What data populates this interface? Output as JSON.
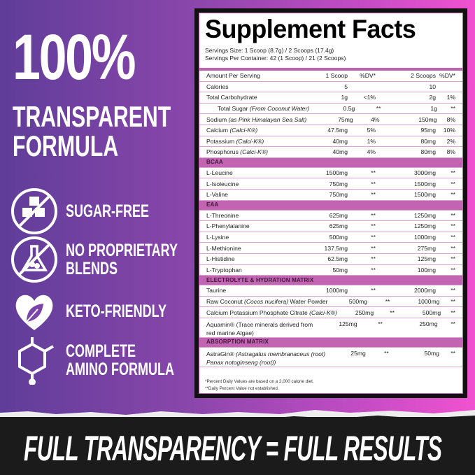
{
  "hero": {
    "line1": "100%",
    "line2": "TRANSPARENT",
    "line3": "FORMULA"
  },
  "features": [
    {
      "icon": "no-sugar-cubes-icon",
      "lines": [
        "SUGAR-FREE"
      ]
    },
    {
      "icon": "no-flask-icon",
      "lines": [
        "NO PROPRIETARY",
        "BLENDS"
      ]
    },
    {
      "icon": "heart-leaf-icon",
      "lines": [
        "KETO-FRIENDLY"
      ]
    },
    {
      "icon": "molecule-icon",
      "lines": [
        "COMPLETE",
        "AMINO FORMULA"
      ]
    }
  ],
  "facts": {
    "title": "Supplement Facts",
    "serving_size": "Servings Size: 1 Scoop (8.7g) / 2 Scoops (17.4g)",
    "servings_per_container": "Servings Per Container: 42 (1 Scoop) / 21 (2 Scoops)",
    "header": [
      "Amount Per Serving",
      "1 Scoop",
      "%DV*",
      "2 Scoops",
      "%DV*"
    ],
    "rows": [
      {
        "name": "Calories",
        "v1": "5",
        "d1": "",
        "v2": "10",
        "d2": ""
      },
      {
        "name": "Total Carbohydrate",
        "v1": "1g",
        "d1": "<1%",
        "v2": "2g",
        "d2": "1%"
      },
      {
        "name": "Total Sugar ",
        "note": "(From Coconut Water)",
        "indent": true,
        "v1": "0.5g",
        "d1": "**",
        "v2": "1g",
        "d2": "**"
      },
      {
        "name": "Sodium ",
        "note": "(as Pink Himalayan Sea Salt)",
        "v1": "75mg",
        "d1": "4%",
        "v2": "150mg",
        "d2": "8%"
      },
      {
        "name": "Calcium ",
        "note": "(Calci-K®)",
        "v1": "47.5mg",
        "d1": "5%",
        "v2": "95mg",
        "d2": "10%"
      },
      {
        "name": "Potassium ",
        "note": "(Calci-K®)",
        "v1": "40mg",
        "d1": "1%",
        "v2": "80mg",
        "d2": "2%"
      },
      {
        "name": "Phosphorus ",
        "note": "(Calci-K®)",
        "v1": "40mg",
        "d1": "4%",
        "v2": "80mg",
        "d2": "8%"
      },
      {
        "section": "BCAA"
      },
      {
        "name": "L-Leucine",
        "v1": "1500mg",
        "d1": "**",
        "v2": "3000mg",
        "d2": "**"
      },
      {
        "name": "L-Isoleucine",
        "v1": "750mg",
        "d1": "**",
        "v2": "1500mg",
        "d2": "**"
      },
      {
        "name": "L-Valine",
        "v1": "750mg",
        "d1": "**",
        "v2": "1500mg",
        "d2": "**"
      },
      {
        "section": "EAA"
      },
      {
        "name": "L-Threonine",
        "v1": "625mg",
        "d1": "**",
        "v2": "1250mg",
        "d2": "**"
      },
      {
        "name": "L-Phenylalanine",
        "v1": "625mg",
        "d1": "**",
        "v2": "1250mg",
        "d2": "**"
      },
      {
        "name": "L-Lysine",
        "v1": "500mg",
        "d1": "**",
        "v2": "1000mg",
        "d2": "**"
      },
      {
        "name": "L-Methionine",
        "v1": "137.5mg",
        "d1": "**",
        "v2": "275mg",
        "d2": "**"
      },
      {
        "name": "L-Histidine",
        "v1": "62.5mg",
        "d1": "**",
        "v2": "125mg",
        "d2": "**"
      },
      {
        "name": "L-Tryptophan",
        "v1": "50mg",
        "d1": "**",
        "v2": "100mg",
        "d2": "**"
      },
      {
        "section": "ELECTROLYTE & HYDRATION MATRIX"
      },
      {
        "name": "Taurine",
        "v1": "1000mg",
        "d1": "**",
        "v2": "2000mg",
        "d2": "**"
      },
      {
        "name": "Raw Coconut ",
        "note": "(Cocos nucifera)",
        "suffix": " Water Powder",
        "v1": "500mg",
        "d1": "**",
        "v2": "1000mg",
        "d2": "**"
      },
      {
        "name": "Calcium Potassium Phosphate Citrate ",
        "note": "(Calci-K®)",
        "v1": "250mg",
        "d1": "**",
        "v2": "500mg",
        "d2": "**"
      },
      {
        "name": "Aquamin® (Trace minerals derived from",
        "line2": "red marine Algae)",
        "v1": "125mg",
        "d1": "**",
        "v2": "250mg",
        "d2": "**"
      },
      {
        "section": "ABSORPTION MATRIX"
      },
      {
        "name": "AstraGin® ",
        "note": "(Astragalus membranaceus (root)",
        "note2": "Panax notoginseng (root))",
        "v1": "25mg",
        "d1": "**",
        "v2": "50mg",
        "d2": "**"
      }
    ],
    "footnotes": [
      "*Percent Daily Values are based on a 2,000 calorie diet.",
      "**Daily Percent Value not established."
    ]
  },
  "slogan": "FULL TRANSPARENCY = FULL RESULTS",
  "colors": {
    "purple": "#5f3d99",
    "pink": "#f152cf",
    "section": "#c364b3",
    "band": "#1b1b1b"
  }
}
